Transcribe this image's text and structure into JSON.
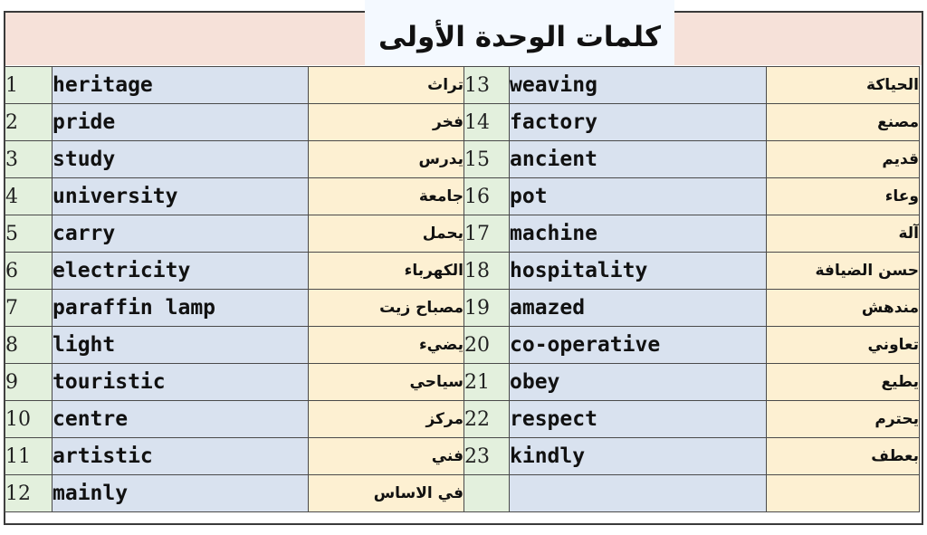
{
  "title": "كلمات الوحدة الأولى",
  "rows": [
    {
      "num": "1",
      "en": "heritage",
      "ar": "تراث",
      "num2": "13",
      "en2": "weaving",
      "ar2": "الحياكة"
    },
    {
      "num": "2",
      "en": "pride",
      "ar": "فخر",
      "num2": "14",
      "en2": "factory",
      "ar2": "مصنع"
    },
    {
      "num": "3",
      "en": "study",
      "ar": "يدرس",
      "num2": "15",
      "en2": "ancient",
      "ar2": "قديم"
    },
    {
      "num": "4",
      "en": "university",
      "ar": "جامعة",
      "num2": "16",
      "en2": "pot",
      "ar2": "وعاء"
    },
    {
      "num": "5",
      "en": "carry",
      "ar": "يحمل",
      "num2": "17",
      "en2": "machine",
      "ar2": "آلة"
    },
    {
      "num": "6",
      "en": "electricity",
      "ar": "الكهرباء",
      "num2": "18",
      "en2": "hospitality",
      "ar2": "حسن الضيافة"
    },
    {
      "num": "7",
      "en": "paraffin lamp",
      "ar": "مصباح زيت",
      "num2": "19",
      "en2": "amazed",
      "ar2": "مندهش"
    },
    {
      "num": "8",
      "en": "light",
      "ar": "يضيء",
      "num2": "20",
      "en2": "co-operative",
      "ar2": "تعاوني"
    },
    {
      "num": "9",
      "en": "touristic",
      "ar": "سياحي",
      "num2": "21",
      "en2": "obey",
      "ar2": "يطيع"
    },
    {
      "num": "10",
      "en": "centre",
      "ar": "مركز",
      "num2": "22",
      "en2": "respect",
      "ar2": "يحترم"
    },
    {
      "num": "11",
      "en": "artistic",
      "ar": "فني",
      "num2": "23",
      "en2": "kindly",
      "ar2": "بعطف"
    },
    {
      "num": "12",
      "en": "mainly",
      "ar": "في الاساس",
      "num2": "",
      "en2": "",
      "ar2": ""
    }
  ],
  "colors": {
    "header": "#f6e1d9",
    "number": "#e3f0dd",
    "english": "#d9e2ef",
    "arabic": "#fdf0d2"
  }
}
